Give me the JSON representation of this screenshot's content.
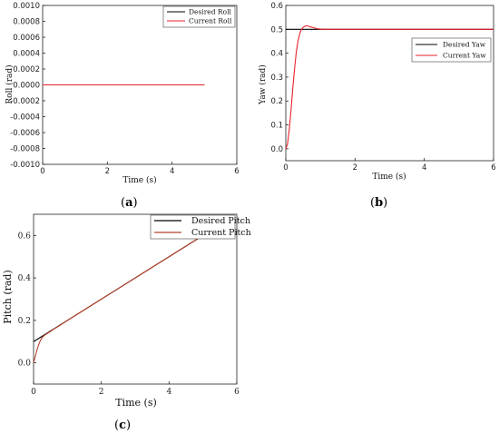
{
  "chart_data": [
    {
      "panel": "(a)",
      "panel_letter": "a",
      "type": "line",
      "xlabel": "Time (s)",
      "ylabel": "Roll (rad)",
      "xlim": [
        0,
        6
      ],
      "ylim": [
        -0.001,
        0.001
      ],
      "xticks": [
        "0",
        "2",
        "4",
        "6"
      ],
      "yticks": [
        "-0.0010",
        "-0.0008",
        "-0.0006",
        "-0.0004",
        "-0.0002",
        "0.0000",
        "0.0002",
        "0.0004",
        "0.0006",
        "0.0008",
        "0.0010"
      ],
      "legend_position": "top-right",
      "series": [
        {
          "name": "Desired Roll",
          "color": "#000000",
          "x": [
            0,
            5
          ],
          "y": [
            0,
            0
          ]
        },
        {
          "name": "Current Roll",
          "color": "#e8212b",
          "x": [
            0,
            5
          ],
          "y": [
            0,
            0
          ]
        }
      ]
    },
    {
      "panel": "(b)",
      "panel_letter": "b",
      "type": "line",
      "xlabel": "Time (s)",
      "ylabel": "Yaw (rad)",
      "xlim": [
        0,
        6
      ],
      "ylim": [
        -0.05,
        0.6
      ],
      "xticks": [
        "0",
        "2",
        "4",
        "6"
      ],
      "yticks": [
        "0.0",
        "0.1",
        "0.2",
        "0.3",
        "0.4",
        "0.5",
        "0.6"
      ],
      "legend_position": "right",
      "series": [
        {
          "name": "Desired Yaw",
          "color": "#000000",
          "x": [
            0,
            6
          ],
          "y": [
            0.5,
            0.5
          ]
        },
        {
          "name": "Current Yaw",
          "color": "#e8212b",
          "x": [
            0,
            0.05,
            0.1,
            0.15,
            0.2,
            0.25,
            0.3,
            0.35,
            0.4,
            0.45,
            0.5,
            0.55,
            0.6,
            0.65,
            0.7,
            0.8,
            0.9,
            1.0,
            1.2,
            1.5,
            2.0,
            3.0,
            4.0,
            5.0,
            6.0
          ],
          "y": [
            0.0,
            0.02,
            0.08,
            0.16,
            0.25,
            0.33,
            0.4,
            0.45,
            0.48,
            0.5,
            0.508,
            0.513,
            0.515,
            0.513,
            0.511,
            0.507,
            0.503,
            0.501,
            0.5,
            0.5,
            0.5,
            0.5,
            0.5,
            0.5,
            0.5
          ]
        }
      ]
    },
    {
      "panel": "(c)",
      "panel_letter": "c",
      "type": "line",
      "xlabel": "Time (s)",
      "ylabel": "Pitch (rad)",
      "xlim": [
        0,
        6
      ],
      "ylim": [
        -0.1,
        0.7
      ],
      "xticks": [
        "0",
        "2",
        "4",
        "6"
      ],
      "yticks": [
        "0.0",
        "0.2",
        "0.4",
        "0.6"
      ],
      "legend_position": "top-right",
      "series": [
        {
          "name": "Desired Pitch",
          "color": "#000000",
          "x": [
            0,
            5
          ],
          "y": [
            0.1,
            0.6
          ]
        },
        {
          "name": "Current Pitch",
          "color": "#b5452d",
          "x": [
            0,
            0.05,
            0.1,
            0.15,
            0.2,
            0.25,
            0.3,
            0.35,
            0.4,
            0.5,
            0.6,
            0.8,
            1.0,
            2.0,
            3.0,
            4.0,
            5.0
          ],
          "y": [
            0.0,
            0.03,
            0.06,
            0.085,
            0.105,
            0.118,
            0.127,
            0.133,
            0.138,
            0.148,
            0.159,
            0.179,
            0.2,
            0.3,
            0.4,
            0.5,
            0.6
          ]
        }
      ]
    }
  ]
}
